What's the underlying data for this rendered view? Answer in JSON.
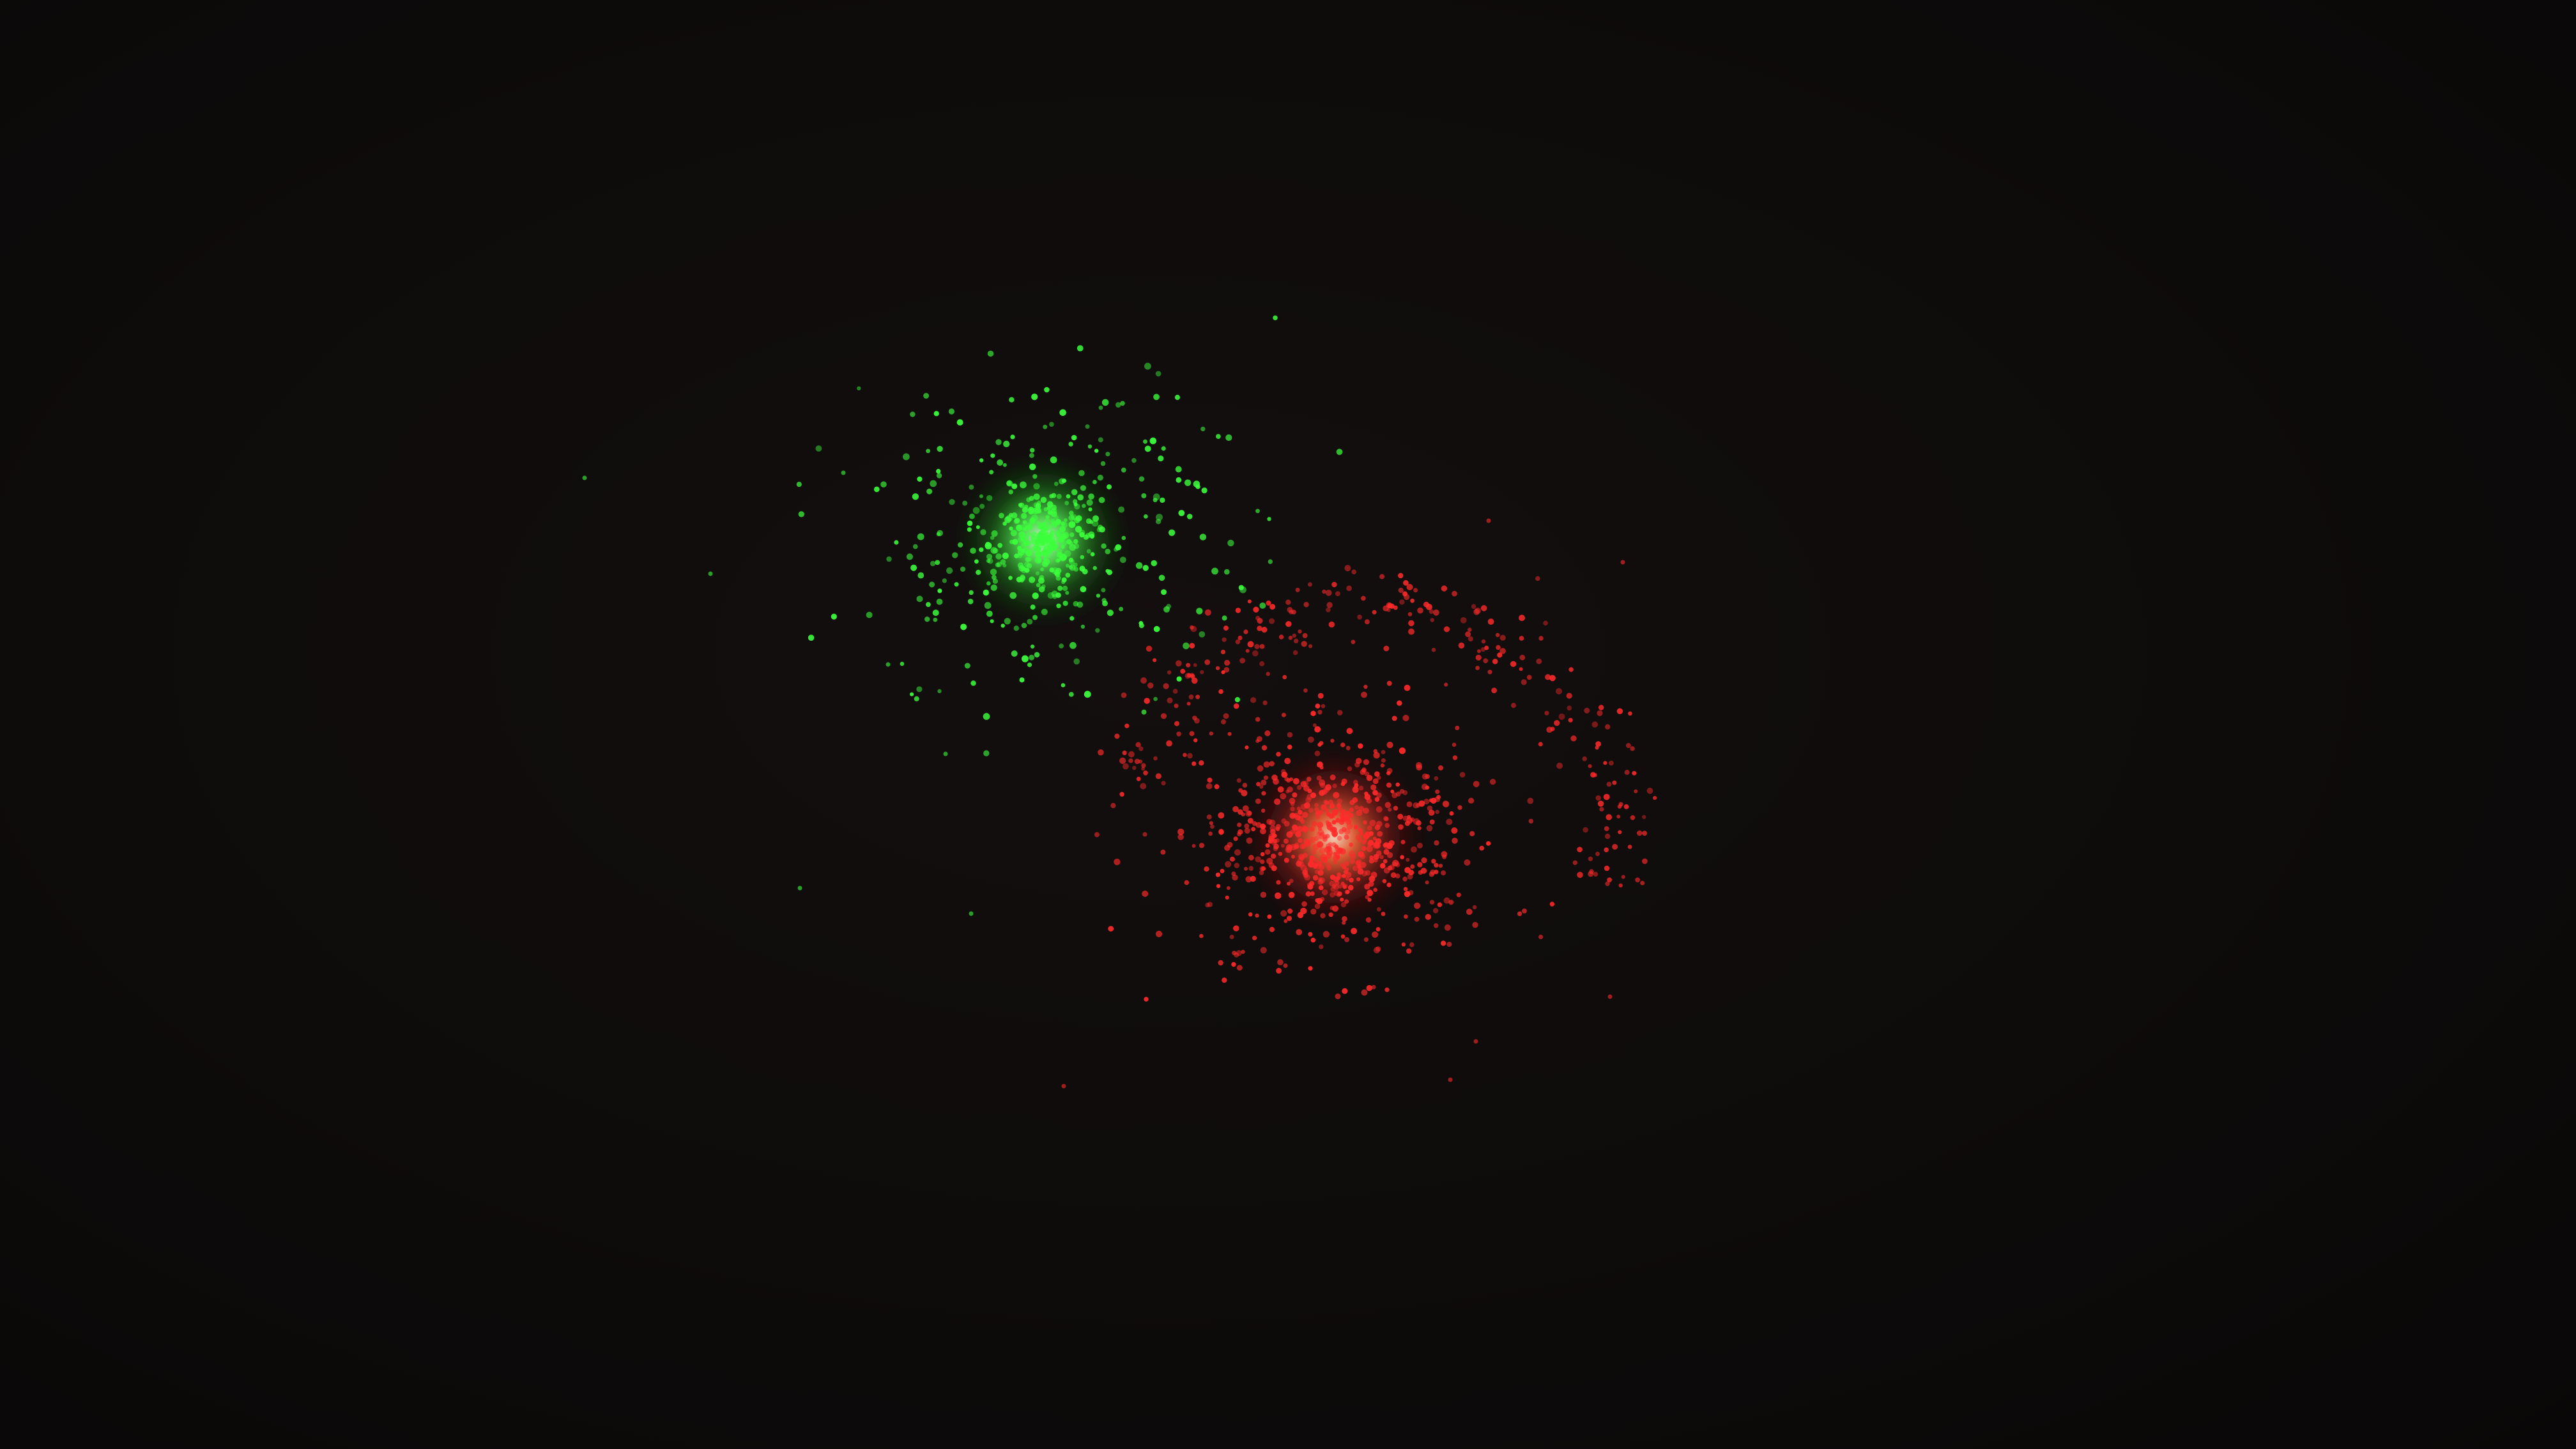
{
  "photo": {
    "subject": "laser-projector-dot-patterns",
    "background_color": "#0d0a0a"
  },
  "green_cluster": {
    "color": "#3cff3c",
    "core_color": "#c8ffc8"
  },
  "red_cluster": {
    "color": "#ff2a2a",
    "core_color": "#ffd2b0"
  }
}
